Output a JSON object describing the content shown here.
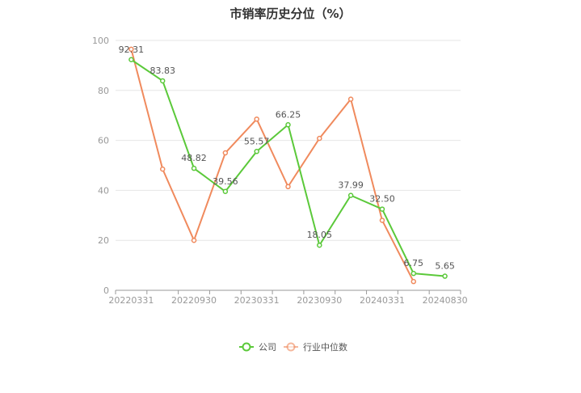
{
  "chart_data": {
    "type": "line",
    "title": "市销率历史分位（%）",
    "xlabel": "",
    "ylabel": "",
    "ylim": [
      0,
      100
    ],
    "y_ticks": [
      0,
      20,
      40,
      60,
      80,
      100
    ],
    "x_tick_labels": [
      "20220331",
      "20220930",
      "20230331",
      "20230930",
      "20240331",
      "20240830"
    ],
    "x_count": 11,
    "grid": true,
    "legend_position": "bottom",
    "series": [
      {
        "name": "公司",
        "color": "#5bc93a",
        "values": [
          92.31,
          83.83,
          48.82,
          39.56,
          55.57,
          66.25,
          18.05,
          37.99,
          32.5,
          6.75,
          5.65
        ],
        "labels": [
          "92.31",
          "83.83",
          "48.82",
          "39.56",
          "55.57",
          "66.25",
          "18.05",
          "37.99",
          "32.50",
          "6.75",
          "5.65"
        ]
      },
      {
        "name": "行业中位数",
        "color": "#f08a5d",
        "values": [
          96.5,
          48.5,
          20.0,
          55.0,
          68.5,
          41.5,
          60.8,
          76.5,
          28.0,
          3.5
        ]
      }
    ]
  }
}
